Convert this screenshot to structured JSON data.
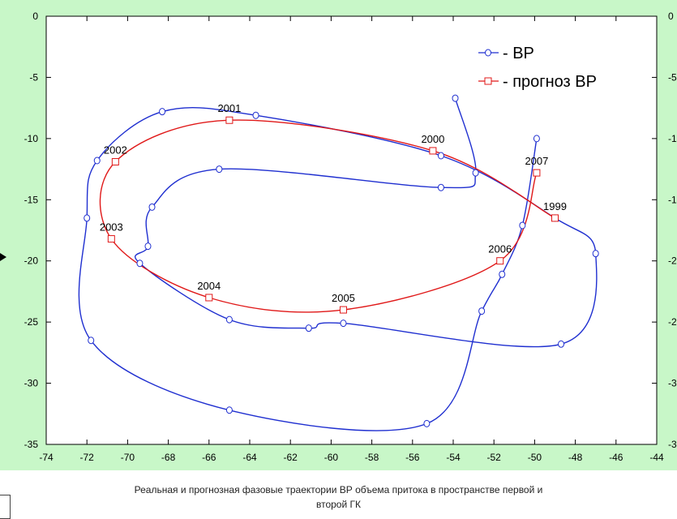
{
  "caption": {
    "line1": "Реальная и прогнозная фазовые траектории ВР объема притока в пространстве первой и",
    "line2": "второй ГК"
  },
  "colors": {
    "real": "#1f2fd0",
    "forecast": "#e01818",
    "background": "#c8f7c8"
  },
  "chart_data": {
    "type": "line",
    "title": "",
    "xlabel": "",
    "ylabel": "",
    "xlim": [
      -74,
      -44
    ],
    "ylim": [
      -35,
      0
    ],
    "x_ticks": [
      "-74",
      "-72",
      "-70",
      "-68",
      "-66",
      "-64",
      "-62",
      "-60",
      "-58",
      "-56",
      "-54",
      "-52",
      "-50",
      "-48",
      "-46",
      "-44"
    ],
    "y_ticks": [
      "0",
      "-5",
      "-10",
      "-15",
      "-20",
      "-25",
      "-30",
      "-35"
    ],
    "right_y_ticks": [
      "0",
      "-5",
      "-1",
      "-1",
      "-2",
      "-2",
      "-3",
      "-3"
    ],
    "grid": false,
    "legend_position": "top-right",
    "series": [
      {
        "name": "- ВР",
        "marker": "circle",
        "color": "#1f2fd0",
        "points": [
          [
            -49.9,
            -10.0
          ],
          [
            -50.6,
            -17.1
          ],
          [
            -51.6,
            -21.1
          ],
          [
            -52.6,
            -24.1
          ],
          [
            -55.3,
            -33.3
          ],
          [
            -65.0,
            -32.2
          ],
          [
            -71.8,
            -26.5
          ],
          [
            -72.0,
            -16.5
          ],
          [
            -71.5,
            -11.8
          ],
          [
            -68.3,
            -7.8
          ],
          [
            -63.7,
            -8.1
          ],
          [
            -54.6,
            -11.4
          ],
          [
            -49.0,
            -16.5
          ],
          [
            -47.0,
            -19.4
          ],
          [
            -48.7,
            -26.8
          ],
          [
            -59.4,
            -25.1
          ],
          [
            -61.1,
            -25.5
          ],
          [
            -65.0,
            -24.8
          ],
          [
            -69.4,
            -20.2
          ],
          [
            -69.0,
            -18.8
          ],
          [
            -68.8,
            -15.6
          ],
          [
            -65.5,
            -12.5
          ],
          [
            -54.6,
            -14.0
          ],
          [
            -52.9,
            -12.8
          ],
          [
            -53.9,
            -6.7
          ]
        ],
        "label_points": []
      },
      {
        "name": "- прогноз ВР",
        "marker": "square",
        "color": "#e01818",
        "points": [
          [
            -49.0,
            -16.5
          ],
          [
            -55.0,
            -11.0
          ],
          [
            -65.0,
            -8.5
          ],
          [
            -70.6,
            -11.9
          ],
          [
            -70.8,
            -18.2
          ],
          [
            -66.0,
            -23.0
          ],
          [
            -59.4,
            -24.0
          ],
          [
            -51.7,
            -20.0
          ],
          [
            -49.9,
            -12.8
          ]
        ],
        "label_points": [
          {
            "label": "1999",
            "x": -49.0,
            "y": -16.5
          },
          {
            "label": "2000",
            "x": -55.0,
            "y": -11.0
          },
          {
            "label": "2001",
            "x": -65.0,
            "y": -8.5
          },
          {
            "label": "2002",
            "x": -70.6,
            "y": -11.9
          },
          {
            "label": "2003",
            "x": -70.8,
            "y": -18.2
          },
          {
            "label": "2004",
            "x": -66.0,
            "y": -23.0
          },
          {
            "label": "2005",
            "x": -59.4,
            "y": -24.0
          },
          {
            "label": "2006",
            "x": -51.7,
            "y": -20.0
          },
          {
            "label": "2007",
            "x": -49.9,
            "y": -12.8
          }
        ]
      }
    ]
  }
}
